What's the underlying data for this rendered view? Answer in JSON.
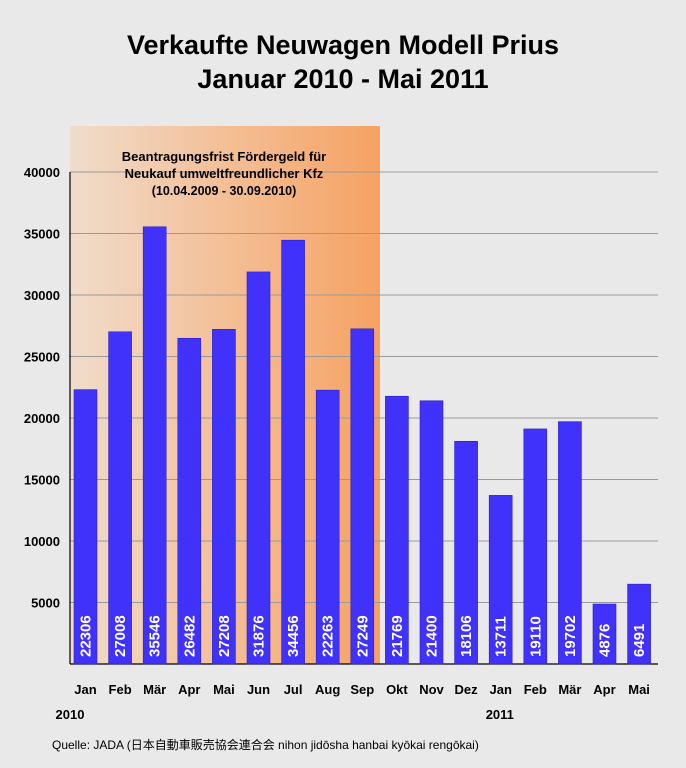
{
  "chart_data": {
    "type": "bar",
    "title_lines": [
      "Verkaufte Neuwagen Modell Prius",
      "Januar 2010 - Mai 2011"
    ],
    "categories": [
      "Jan",
      "Feb",
      "Mär",
      "Apr",
      "Mai",
      "Jun",
      "Jul",
      "Aug",
      "Sep",
      "Okt",
      "Nov",
      "Dez",
      "Jan",
      "Feb",
      "Mär",
      "Apr",
      "Mai"
    ],
    "year_labels": [
      {
        "index": 0,
        "label": "2010"
      },
      {
        "index": 12,
        "label": "2011"
      }
    ],
    "values": [
      22306,
      27008,
      35546,
      26482,
      27208,
      31876,
      34456,
      22263,
      27249,
      21769,
      21400,
      18106,
      13711,
      19110,
      19702,
      4876,
      6491
    ],
    "bar_labels": [
      "22306",
      "27008",
      "35546",
      "26482",
      "27208",
      "31876",
      "34456",
      "22263",
      "27249",
      "21769",
      "21400",
      "18106",
      "13711",
      "19110",
      "19702",
      "4876",
      "6491"
    ],
    "yticks": [
      5000,
      10000,
      15000,
      20000,
      25000,
      30000,
      35000,
      40000
    ],
    "ylim": [
      0,
      40000
    ],
    "xlabel": "",
    "ylabel": "",
    "grid": true,
    "highlight": {
      "from_index": 0,
      "to_index": 8,
      "lines": [
        "Beantragungsfrist Fördergeld für",
        "Neukauf umweltfreundlicher Kfz",
        "(10.04.2009 - 30.09.2010)"
      ]
    },
    "source": "Quelle: JADA (日本自動車販売協会連合会 nihon jidōsha hanbai kyōkai rengōkai)"
  },
  "colors": {
    "bar": "#4132fb",
    "background": "#e9e9e9",
    "highlight_light": "#f0dccb",
    "highlight_dark": "#f6a262",
    "grid": "#9a9a9a",
    "bar_text": "#ffffff"
  }
}
